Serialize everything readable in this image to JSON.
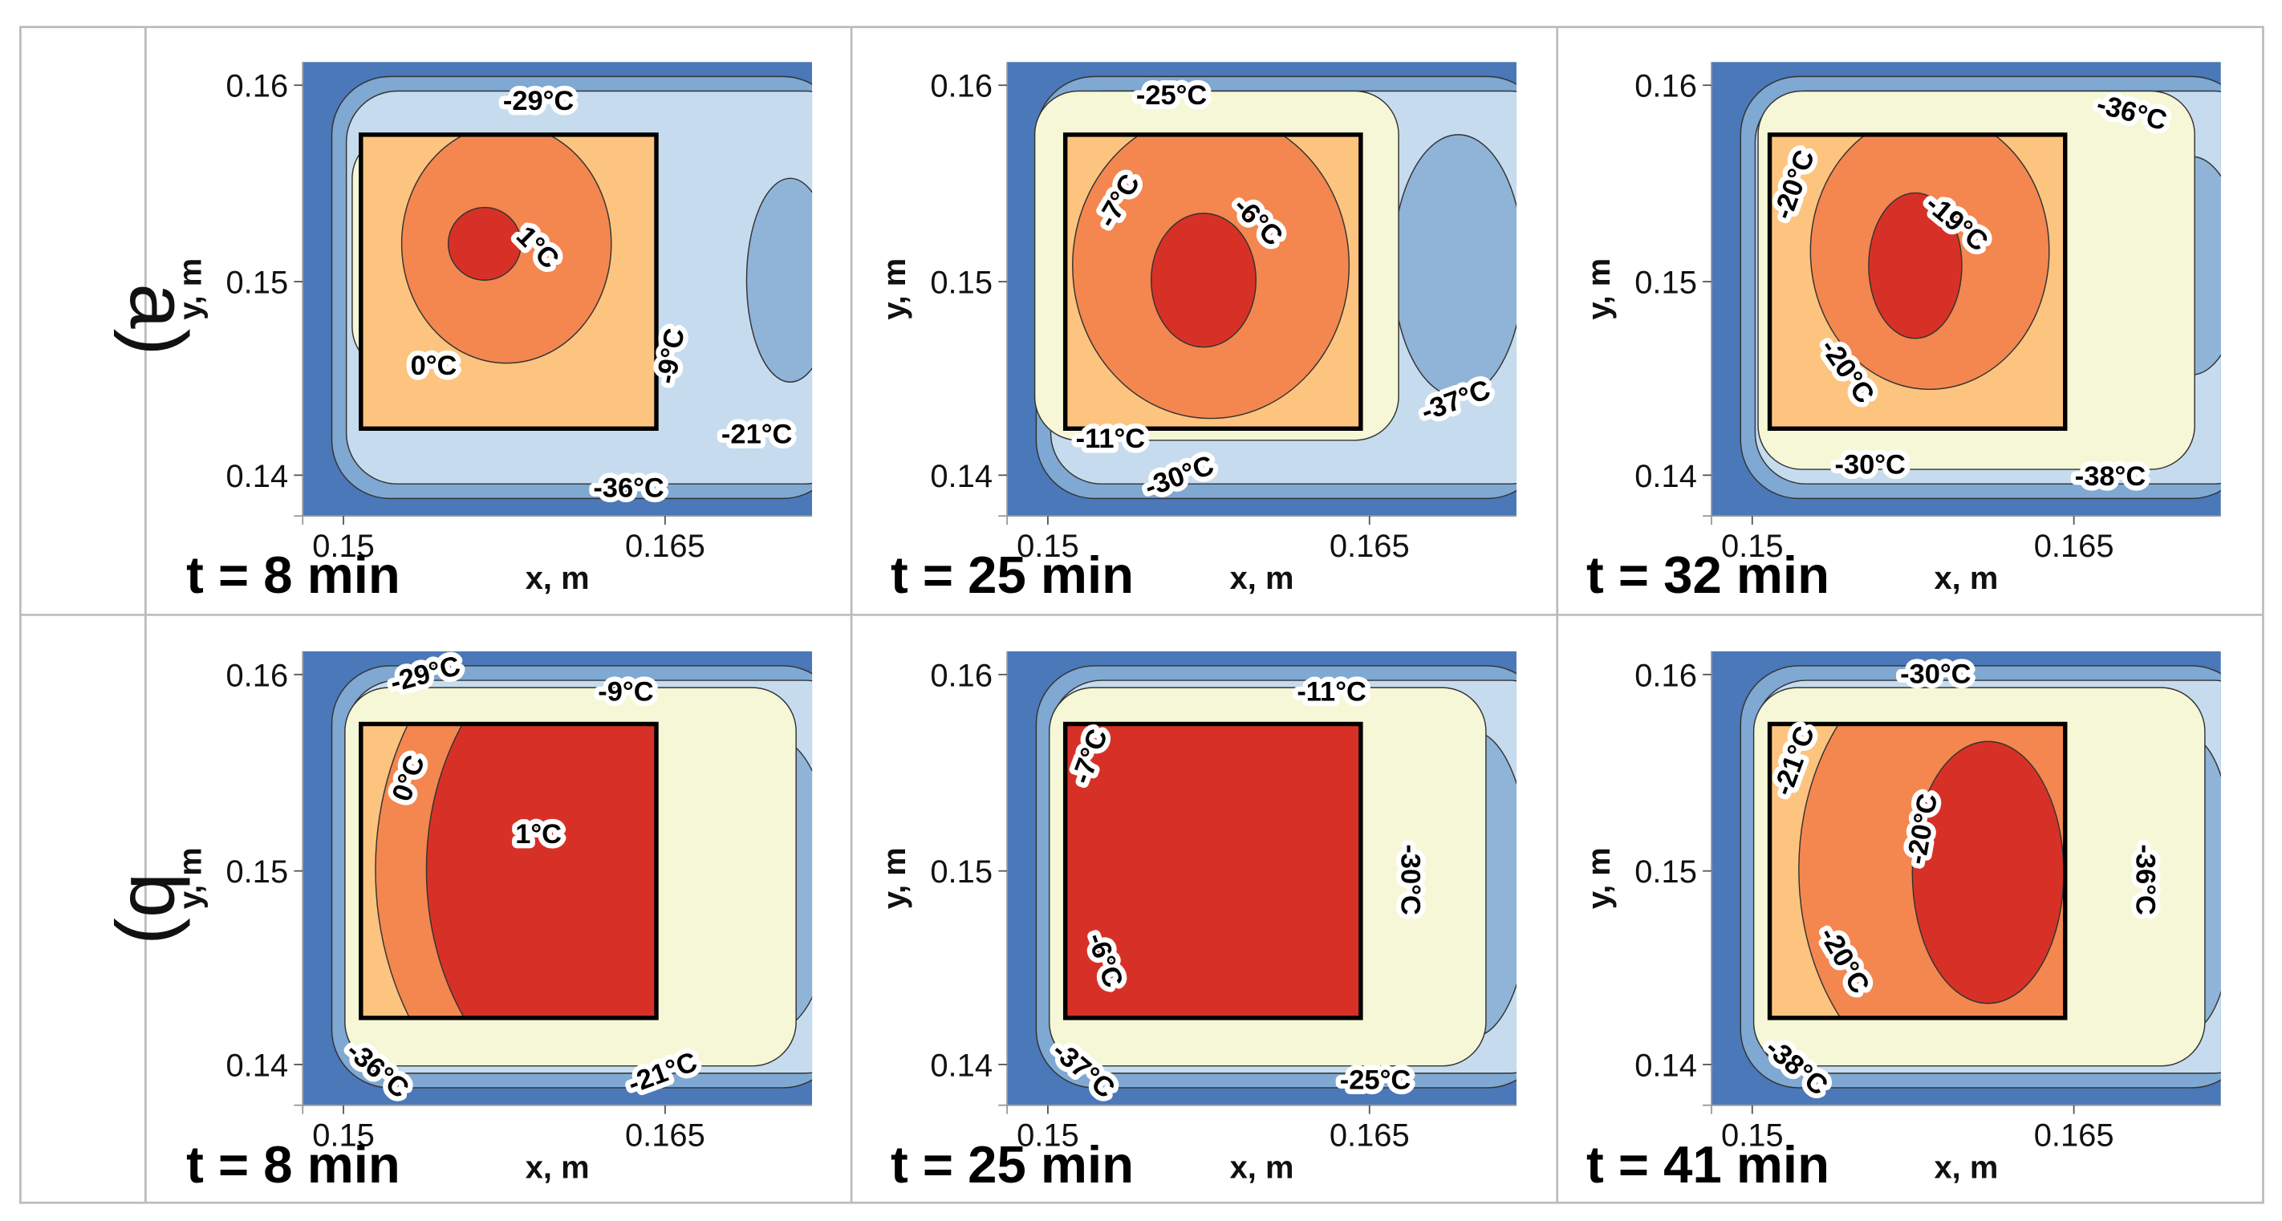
{
  "row_labels": [
    "a)",
    "b)"
  ],
  "panels": [
    {
      "time": "t = 8 min",
      "x_label": "x, m",
      "y_label": "y, m",
      "x_ticks": [
        "0.15",
        "0.165"
      ],
      "y_ticks": [
        "0.16",
        "0.15",
        "0.14"
      ],
      "contour_labels": [
        "-29°C",
        "1°C",
        "0°C",
        "-9°C",
        "-21°C",
        "-36°C"
      ]
    },
    {
      "time": "t = 25 min",
      "x_label": "x, m",
      "y_label": "y, m",
      "x_ticks": [
        "0.15",
        "0.165"
      ],
      "y_ticks": [
        "0.16",
        "0.15",
        "0.14"
      ],
      "contour_labels": [
        "-25°C",
        "-7°C",
        "-6°C",
        "-37°C",
        "-11°C",
        "-30°C"
      ]
    },
    {
      "time": "t = 32 min",
      "x_label": "x, m",
      "y_label": "y, m",
      "x_ticks": [
        "0.15",
        "0.165"
      ],
      "y_ticks": [
        "0.16",
        "0.15",
        "0.14"
      ],
      "contour_labels": [
        "-36°C",
        "-20°C",
        "-19°C",
        "-20°C",
        "-30°C",
        "-38°C"
      ]
    },
    {
      "time": "t = 8 min",
      "x_label": "x, m",
      "y_label": "y, m",
      "x_ticks": [
        "0.15",
        "0.165"
      ],
      "y_ticks": [
        "0.16",
        "0.15",
        "0.14"
      ],
      "contour_labels": [
        "-29°C",
        "-9°C",
        "0°C",
        "1°C",
        "-36°C",
        "-21°C"
      ]
    },
    {
      "time": "t = 25 min",
      "x_label": "x, m",
      "y_label": "y, m",
      "x_ticks": [
        "0.15",
        "0.165"
      ],
      "y_ticks": [
        "0.16",
        "0.15",
        "0.14"
      ],
      "contour_labels": [
        "-11°C",
        "-7°C",
        "-30°C",
        "-6°C",
        "-37°C",
        "-25°C"
      ]
    },
    {
      "time": "t = 41 min",
      "x_label": "x, m",
      "y_label": "y, m",
      "x_ticks": [
        "0.15",
        "0.165"
      ],
      "y_ticks": [
        "0.16",
        "0.15",
        "0.14"
      ],
      "contour_labels": [
        "-30°C",
        "-21°C",
        "-20°C",
        "-36°C",
        "-20°C",
        "-38°C"
      ]
    }
  ]
}
